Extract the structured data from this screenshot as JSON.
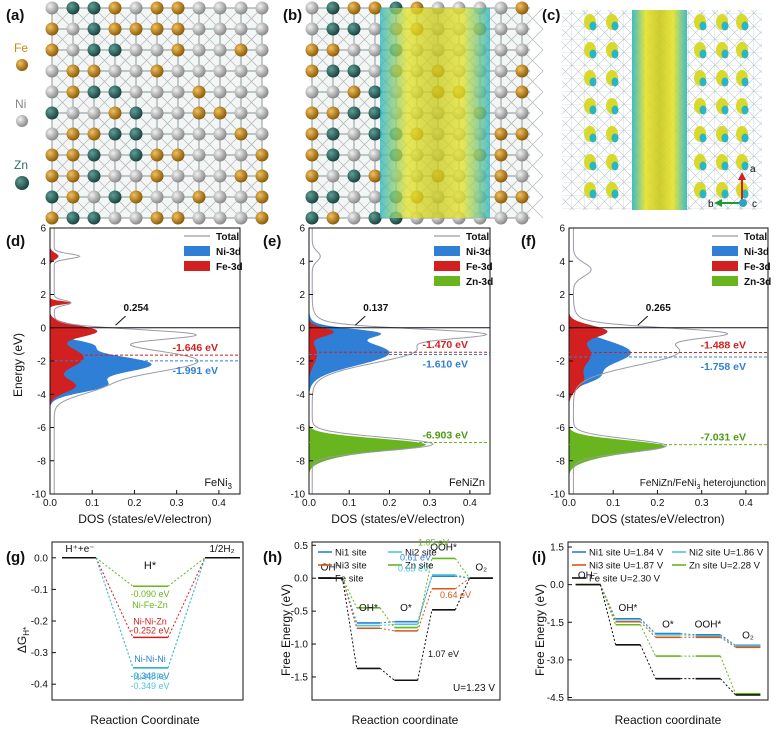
{
  "colors": {
    "fe": "#c98a12",
    "ni": "#a9a9a9",
    "zn": "#2e6f66",
    "ni3d": "#2f7fd6",
    "fe3d": "#d21f1f",
    "zn3d": "#69b51f",
    "total": "#9a9aaa",
    "iso": "#dfe02a"
  },
  "structures": {
    "a": {
      "letter": "(a)",
      "legend": [
        {
          "label": "Fe",
          "icon": "fe-atom-icon"
        },
        {
          "label": "Ni",
          "icon": "ni-atom-icon"
        },
        {
          "label": "Zn",
          "icon": "zn-atom-icon"
        }
      ]
    },
    "b": {
      "letter": "(b)"
    },
    "c": {
      "letter": "(c)",
      "axes": {
        "a": "a",
        "b": "b",
        "c": "c"
      }
    }
  },
  "chart_data": [
    {
      "type": "area",
      "id": "d",
      "letter": "(d)",
      "title": "FeNi3",
      "xlabel": "DOS (states/eV/electron)",
      "ylabel": "Energy (eV)",
      "xlim": [
        0,
        0.45
      ],
      "ylim": [
        -10,
        6
      ],
      "xticks": [
        "0.0",
        "0.1",
        "0.2",
        "0.3",
        "0.4"
      ],
      "yticks": [
        "6",
        "4",
        "2",
        "0",
        "-2",
        "-4",
        "-6",
        "-8",
        "-10"
      ],
      "series": [
        {
          "name": "Total"
        },
        {
          "name": "Ni-3d"
        },
        {
          "name": "Fe-3d"
        }
      ],
      "annotations": {
        "dbc_value": "0.254",
        "dbc1": "-1.646 eV",
        "dbc2": "-1.991 eV"
      },
      "dbc_levels": [
        -1.646,
        -1.991
      ]
    },
    {
      "type": "area",
      "id": "e",
      "letter": "(e)",
      "title": "FeNiZn",
      "xlabel": "DOS (states/eV/electron)",
      "xlim": [
        0,
        0.45
      ],
      "ylim": [
        -10,
        6
      ],
      "xticks": [
        "0.0",
        "0.1",
        "0.2",
        "0.3",
        "0.4"
      ],
      "yticks": [
        "6",
        "4",
        "2",
        "0",
        "-2",
        "-4",
        "-6",
        "-8",
        "-10"
      ],
      "series": [
        {
          "name": "Total"
        },
        {
          "name": "Ni-3d"
        },
        {
          "name": "Fe-3d"
        },
        {
          "name": "Zn-3d"
        }
      ],
      "annotations": {
        "dbc_value": "0.137",
        "dbc1": "-1.470 eV",
        "dbc2": "-1.610 eV",
        "dbc3": "-6.903 eV"
      },
      "dbc_levels": [
        -1.47,
        -1.61,
        -6.903
      ]
    },
    {
      "type": "area",
      "id": "f",
      "letter": "(f)",
      "title": "FeNiZn/FeNi3 heterojunction",
      "xlabel": "DOS (states/eV/electron)",
      "xlim": [
        0,
        0.45
      ],
      "ylim": [
        -10,
        6
      ],
      "xticks": [
        "0.0",
        "0.1",
        "0.2",
        "0.3",
        "0.4"
      ],
      "yticks": [
        "6",
        "4",
        "2",
        "0",
        "-2",
        "-4",
        "-6",
        "-8",
        "-10"
      ],
      "series": [
        {
          "name": "Total"
        },
        {
          "name": "Ni-3d"
        },
        {
          "name": "Fe-3d"
        },
        {
          "name": "Zn-3d"
        }
      ],
      "annotations": {
        "dbc_value": "0.265",
        "dbc1": "-1.488 eV",
        "dbc2": "-1.758 eV",
        "dbc3": "-7.031 eV"
      },
      "dbc_levels": [
        -1.488,
        -1.758,
        -7.031
      ]
    },
    {
      "type": "line",
      "id": "g",
      "letter": "(g)",
      "ylabel": "ΔG_H*",
      "xlabel": "Reaction Coordinate",
      "ylim": [
        -0.45,
        0.05
      ],
      "yticks": [
        "0.0",
        "-0.1",
        "-0.2",
        "-0.3",
        "-0.4"
      ],
      "states": [
        "H⁺+e⁻",
        "H*",
        "1/2H₂"
      ],
      "series": [
        {
          "name": "Ni-Fe-Zn",
          "value": -0.09,
          "label": "-0.090 eV",
          "color": "#69b51f"
        },
        {
          "name": "Ni-Ni-Zn",
          "value": -0.252,
          "label": "-0.252 eV",
          "color": "#d21f1f"
        },
        {
          "name": "Ni-Ni-Ni",
          "value": -0.348,
          "label": "-0.348 eV",
          "color": "#2f7fd6"
        },
        {
          "name": "Ni-Ni-Fe",
          "value": -0.349,
          "label": "-0.349 eV",
          "color": "#4fc6d6"
        }
      ]
    },
    {
      "type": "line",
      "id": "h",
      "letter": "(h)",
      "ylabel": "Free Energy (eV)",
      "xlabel": "Reaction coordinate",
      "ylim": [
        -1.85,
        0.55
      ],
      "yticks": [
        "0.5",
        "0.0",
        "-0.5",
        "-1.0",
        "-1.5"
      ],
      "states": [
        "OH⁻",
        "OH*",
        "O*",
        "OOH*",
        "O₂"
      ],
      "condition": "U=1.23 V",
      "series": [
        {
          "name": "Ni1 site",
          "values": [
            0,
            -0.68,
            -0.66,
            0.03,
            0
          ],
          "color": "#2f7fd6"
        },
        {
          "name": "Ni2 site",
          "values": [
            0,
            -0.72,
            -0.7,
            0.05,
            0
          ],
          "color": "#4fc6d6"
        },
        {
          "name": "Ni3 site",
          "values": [
            0,
            -0.76,
            -0.8,
            -0.16,
            0
          ],
          "color": "#d2591f"
        },
        {
          "name": "Zn site",
          "values": [
            0,
            -0.45,
            -0.75,
            0.3,
            0
          ],
          "color": "#69b51f"
        },
        {
          "name": "Fe site",
          "values": [
            0,
            -1.37,
            -1.55,
            -0.48,
            0
          ],
          "color": "#111111"
        }
      ],
      "annotations": [
        "1.05 eV",
        "0.61 eV",
        "0.63 eV",
        "0.64 eV",
        "1.07 eV"
      ]
    },
    {
      "type": "line",
      "id": "i",
      "letter": "(i)",
      "ylabel": "Free Energy (eV)",
      "xlabel": "Reaction coordinate",
      "ylim": [
        -4.6,
        1.7
      ],
      "yticks": [
        "1.5",
        "0.0",
        "-1.5",
        "-3.0",
        "-4.5"
      ],
      "states": [
        "OH⁻",
        "OH*",
        "O*",
        "OOH*",
        "O₂"
      ],
      "series": [
        {
          "name": "Ni1 site U=1.84 V",
          "values": [
            0,
            -1.36,
            -1.95,
            -2.0,
            -2.42
          ],
          "color": "#2f7fd6"
        },
        {
          "name": "Ni2 site U=1.86 V",
          "values": [
            0,
            -1.4,
            -2.0,
            -2.05,
            -2.45
          ],
          "color": "#4fc6d6"
        },
        {
          "name": "Ni3 site U=1.87 V",
          "values": [
            0,
            -1.48,
            -2.1,
            -2.1,
            -2.5
          ],
          "color": "#d2591f"
        },
        {
          "name": "Zn site U=2.28 V",
          "values": [
            0,
            -1.6,
            -2.85,
            -2.85,
            -4.35
          ],
          "color": "#69b51f"
        },
        {
          "name": "Fe site U=2.30 V",
          "values": [
            0,
            -2.4,
            -3.75,
            -3.75,
            -4.4
          ],
          "color": "#111111"
        }
      ]
    }
  ]
}
